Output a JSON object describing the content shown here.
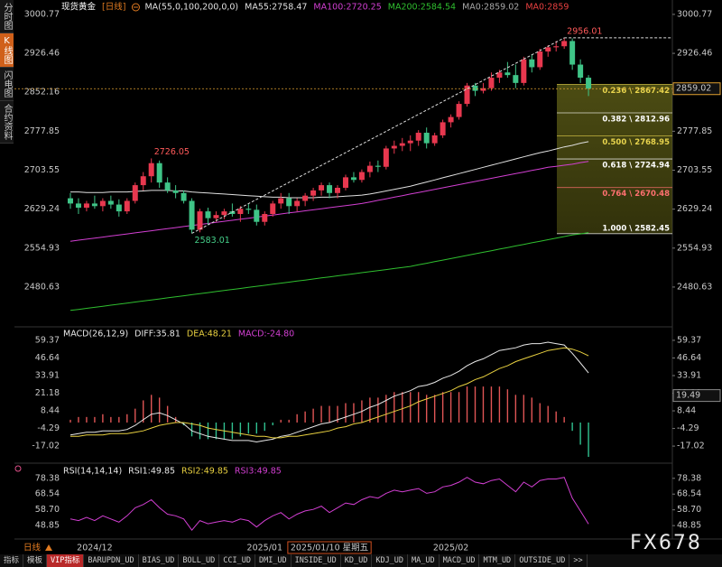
{
  "chart_data": [
    {
      "type": "candlestick",
      "title": "现货黄金",
      "period": "[日线]",
      "indicator": "MA(55,0,100,200,0,0)",
      "categories": [
        null,
        null,
        null,
        "2024/12",
        null,
        null,
        null,
        null,
        null,
        null,
        null,
        null,
        null,
        null,
        null,
        null,
        null,
        null,
        null,
        null,
        null,
        null,
        null,
        null,
        "2025/01",
        null,
        null,
        null,
        null,
        null,
        null,
        null,
        "2025/01/10 星期五",
        null,
        null,
        null,
        null,
        null,
        null,
        null,
        null,
        null,
        null,
        null,
        null,
        null,
        null,
        "2025/02",
        null,
        null,
        null,
        null,
        null,
        null,
        null,
        null,
        null,
        null,
        null,
        null,
        null,
        null,
        null,
        null,
        null
      ],
      "open": [
        2650,
        2640,
        2632,
        2640,
        2635,
        2645,
        2638,
        2625,
        2645,
        2675,
        2692,
        2717,
        2680,
        2665,
        2660,
        2645,
        2590,
        2625,
        2612,
        2618,
        2625,
        2620,
        2630,
        2628,
        2605,
        2620,
        2640,
        2650,
        2635,
        2645,
        2655,
        2665,
        2675,
        2660,
        2670,
        2690,
        2685,
        2700,
        2712,
        2710,
        2745,
        2750,
        2755,
        2760,
        2775,
        2755,
        2770,
        2795,
        2805,
        2830,
        2865,
        2855,
        2860,
        2880,
        2890,
        2885,
        2870,
        2915,
        2900,
        2930,
        2938,
        2940,
        2950,
        2905,
        2880
      ],
      "high": [
        2660,
        2650,
        2645,
        2655,
        2650,
        2655,
        2648,
        2650,
        2680,
        2700,
        2726.05,
        2722,
        2690,
        2675,
        2665,
        2650,
        2630,
        2632,
        2625,
        2630,
        2640,
        2635,
        2640,
        2638,
        2625,
        2645,
        2660,
        2660,
        2650,
        2660,
        2670,
        2680,
        2680,
        2675,
        2695,
        2700,
        2705,
        2720,
        2722,
        2750,
        2760,
        2765,
        2770,
        2780,
        2785,
        2775,
        2800,
        2810,
        2835,
        2870,
        2870,
        2870,
        2890,
        2895,
        2910,
        2905,
        2920,
        2925,
        2935,
        2942,
        2950,
        2956.01,
        2955,
        2915,
        2885
      ],
      "low": [
        2630,
        2620,
        2625,
        2630,
        2625,
        2630,
        2615,
        2620,
        2640,
        2665,
        2680,
        2670,
        2660,
        2650,
        2640,
        2583.01,
        2585,
        2600,
        2605,
        2610,
        2615,
        2605,
        2620,
        2598,
        2598,
        2615,
        2630,
        2620,
        2625,
        2635,
        2645,
        2655,
        2650,
        2650,
        2665,
        2680,
        2680,
        2690,
        2700,
        2705,
        2735,
        2740,
        2740,
        2750,
        2745,
        2750,
        2765,
        2785,
        2800,
        2825,
        2845,
        2850,
        2855,
        2870,
        2880,
        2860,
        2865,
        2890,
        2895,
        2920,
        2930,
        2935,
        2895,
        2870,
        2845
      ],
      "close": [
        2640,
        2632,
        2640,
        2635,
        2645,
        2638,
        2625,
        2645,
        2675,
        2692,
        2717,
        2680,
        2665,
        2660,
        2645,
        2590,
        2625,
        2612,
        2618,
        2625,
        2620,
        2630,
        2628,
        2605,
        2620,
        2640,
        2650,
        2635,
        2645,
        2655,
        2665,
        2675,
        2660,
        2670,
        2690,
        2685,
        2700,
        2712,
        2710,
        2745,
        2750,
        2755,
        2760,
        2775,
        2755,
        2770,
        2795,
        2805,
        2830,
        2865,
        2855,
        2860,
        2880,
        2890,
        2885,
        2870,
        2915,
        2900,
        2930,
        2938,
        2940,
        2950,
        2905,
        2880,
        2859.02
      ],
      "up_color": "#e8384f",
      "down_color": "#3fc487",
      "series": [
        {
          "name": "MA55:2758.47",
          "color": "#e0e0e0",
          "values": [
            2662,
            2662,
            2661,
            2661,
            2661,
            2662,
            2662,
            2662,
            2663,
            2664,
            2665,
            2665,
            2665,
            2664,
            2664,
            2662,
            2661,
            2660,
            2659,
            2658,
            2657,
            2656,
            2655,
            2654,
            2653,
            2652,
            2652,
            2651,
            2651,
            2651,
            2651,
            2652,
            2652,
            2653,
            2654,
            2655,
            2656,
            2658,
            2661,
            2664,
            2667,
            2670,
            2673,
            2677,
            2681,
            2685,
            2689,
            2693,
            2697,
            2701,
            2705,
            2709,
            2713,
            2717,
            2721,
            2725,
            2729,
            2733,
            2737,
            2740,
            2744,
            2748,
            2751,
            2755,
            2758
          ]
        },
        {
          "name": "MA100:2720.25",
          "color": "#d23fd2",
          "values": [
            2568,
            2570,
            2572,
            2574,
            2576,
            2578,
            2580,
            2582,
            2584,
            2586,
            2588,
            2590,
            2592,
            2594,
            2596,
            2598,
            2600,
            2602,
            2604,
            2606,
            2608,
            2610,
            2612,
            2614,
            2616,
            2618,
            2620,
            2622,
            2624,
            2626,
            2628,
            2630,
            2632,
            2634,
            2636,
            2638,
            2640,
            2643,
            2646,
            2649,
            2652,
            2655,
            2658,
            2661,
            2664,
            2667,
            2670,
            2673,
            2676,
            2679,
            2682,
            2685,
            2688,
            2691,
            2694,
            2697,
            2700,
            2703,
            2706,
            2709,
            2711,
            2713,
            2715,
            2718,
            2720.25
          ]
        },
        {
          "name": "MA200:2584.54",
          "color": "#2fbf2f",
          "values": [
            2436,
            2438,
            2440,
            2442,
            2444,
            2446,
            2448,
            2450,
            2452,
            2454,
            2456,
            2458,
            2460,
            2462,
            2464,
            2466,
            2468,
            2470,
            2472,
            2474,
            2476,
            2478,
            2480,
            2482,
            2484,
            2486,
            2488,
            2490,
            2492,
            2494,
            2496,
            2498,
            2500,
            2502,
            2504,
            2506,
            2508,
            2510,
            2512,
            2514,
            2516,
            2518,
            2520,
            2523,
            2526,
            2529,
            2532,
            2535,
            2538,
            2541,
            2544,
            2547,
            2550,
            2553,
            2556,
            2559,
            2562,
            2565,
            2568,
            2571,
            2574,
            2577,
            2580,
            2582,
            2584.54
          ]
        }
      ],
      "extra_labels": [
        {
          "text": "MA0:2859.02",
          "color": "#a8a8a8"
        },
        {
          "text": "MA0:2859",
          "color": "#e84040"
        }
      ],
      "annotations": [
        {
          "value": 2956.01,
          "color": "#ff5a5a"
        },
        {
          "value": 2726.05,
          "color": "#ff5a5a"
        },
        {
          "value": 2583.01,
          "color": "#45d08a"
        }
      ],
      "last_price_color": "#e0a030",
      "fibonacci": [
        {
          "ratio": 0.236,
          "price": 2867.42,
          "label": "0.236 \\ 2867.42",
          "color": "#e8d44d"
        },
        {
          "ratio": 0.382,
          "price": 2812.96,
          "label": "0.382 \\ 2812.96",
          "color": "#ffffff"
        },
        {
          "ratio": 0.5,
          "price": 2768.95,
          "label": "0.500 \\ 2768.95",
          "color": "#e8d44d"
        },
        {
          "ratio": 0.618,
          "price": 2724.94,
          "label": "0.618 \\ 2724.94",
          "color": "#ffffff"
        },
        {
          "ratio": 0.764,
          "price": 2670.48,
          "label": "0.764 \\ 2670.48",
          "color": "#ff7070"
        },
        {
          "ratio": 1,
          "price": 2582.45,
          "label": "1.000 \\ 2582.45",
          "color": "#ffffff"
        }
      ],
      "ylim": [
        2434,
        3011
      ],
      "yticks": [
        3000.77,
        2926.46,
        2852.16,
        2777.85,
        2703.55,
        2629.24,
        2554.93,
        2480.63
      ]
    },
    {
      "type": "macd",
      "title": "MACD(26,12,9)",
      "series": [
        {
          "name": "DIFF:35.81",
          "color": "#e8e8e8",
          "values": [
            -9,
            -8,
            -7,
            -7,
            -6,
            -6,
            -6,
            -5,
            -2,
            2,
            6,
            7,
            5,
            2,
            -1,
            -6,
            -8,
            -10,
            -11,
            -12,
            -13,
            -13,
            -13,
            -14,
            -13,
            -12,
            -10,
            -9,
            -7,
            -5,
            -3,
            -1,
            0,
            2,
            4,
            6,
            8,
            11,
            13,
            16,
            19,
            21,
            23,
            26,
            27,
            29,
            32,
            34,
            37,
            41,
            44,
            46,
            49,
            52,
            53,
            54,
            56,
            57,
            57,
            58,
            57,
            56,
            50,
            43,
            35.81
          ]
        },
        {
          "name": "DEA:48.21",
          "color": "#e8d040",
          "values": [
            -10,
            -10,
            -9,
            -9,
            -9,
            -8,
            -8,
            -8,
            -7,
            -6,
            -4,
            -2,
            -1,
            0,
            0,
            -1,
            -2,
            -4,
            -5,
            -6,
            -7,
            -8,
            -9,
            -10,
            -10,
            -11,
            -11,
            -10,
            -10,
            -9,
            -8,
            -7,
            -6,
            -4,
            -3,
            -1,
            0,
            2,
            4,
            6,
            8,
            10,
            12,
            15,
            17,
            19,
            21,
            23,
            26,
            28,
            31,
            33,
            36,
            39,
            41,
            44,
            46,
            48,
            50,
            52,
            53,
            54,
            53,
            51,
            48.21
          ]
        },
        {
          "name": "MACD:-24.80",
          "color": "#d23fd2",
          "bars": true,
          "up_color": "#e05555",
          "down_color": "#30c090",
          "values": [
            2,
            4,
            4,
            4,
            6,
            4,
            4,
            6,
            10,
            16,
            20,
            18,
            12,
            4,
            -2,
            -10,
            -12,
            -12,
            -12,
            -12,
            -12,
            -10,
            -8,
            -8,
            -6,
            -2,
            2,
            2,
            6,
            8,
            10,
            12,
            12,
            12,
            14,
            14,
            16,
            18,
            18,
            20,
            22,
            22,
            22,
            22,
            20,
            20,
            22,
            22,
            22,
            26,
            26,
            26,
            26,
            26,
            24,
            20,
            20,
            18,
            14,
            12,
            8,
            4,
            -6,
            -16,
            -24.8
          ]
        }
      ],
      "marker_value": 19.49,
      "ylim": [
        -27.4,
        63.9
      ],
      "yticks": [
        59.37,
        46.64,
        33.91,
        21.18,
        8.44,
        -4.29,
        -17.02
      ]
    },
    {
      "type": "rsi",
      "title": "RSI(14,14,14)",
      "series": [
        {
          "name": "RSI1:49.85",
          "color": "#e8e8e8"
        },
        {
          "name": "RSI2:49.85",
          "color": "#e8d040"
        },
        {
          "name": "RSI3:49.85",
          "color": "#d23fd2",
          "values": [
            53,
            52,
            54,
            52,
            55,
            53,
            51,
            55,
            60,
            62,
            65,
            60,
            56,
            55,
            53,
            46,
            52,
            50,
            51,
            52,
            51,
            53,
            52,
            48,
            52,
            55,
            57,
            53,
            56,
            58,
            59,
            61,
            57,
            60,
            63,
            62,
            65,
            67,
            66,
            69,
            71,
            70,
            71,
            72,
            69,
            70,
            73,
            74,
            76,
            79,
            76,
            75,
            77,
            78,
            74,
            70,
            76,
            73,
            77,
            78,
            78,
            79,
            66,
            58,
            49.85
          ]
        }
      ],
      "ylim": [
        43.3,
        83.9
      ],
      "yticks": [
        78.38,
        68.54,
        {
          "value": 58.7,
          "label": "58.70"
        },
        48.85
      ]
    }
  ],
  "side_tabs": [
    "分时图",
    "K线图",
    "闪电图",
    "合约资料"
  ],
  "active_tab": 1,
  "period_label": "日线",
  "watermark": "FX678",
  "toolbar": [
    "指标",
    "模板",
    "VIP指标",
    "BARUPDN_UD",
    "BIAS_UD",
    "BOLL_UD",
    "CCI_UD",
    "DMI_UD",
    "INSIDE_UD",
    "KD_UD",
    "KDJ_UD",
    "MA_UD",
    "MACD_UD",
    "MTM_UD",
    "OUTSIDE_UD",
    ">>"
  ],
  "active_tool": 2
}
